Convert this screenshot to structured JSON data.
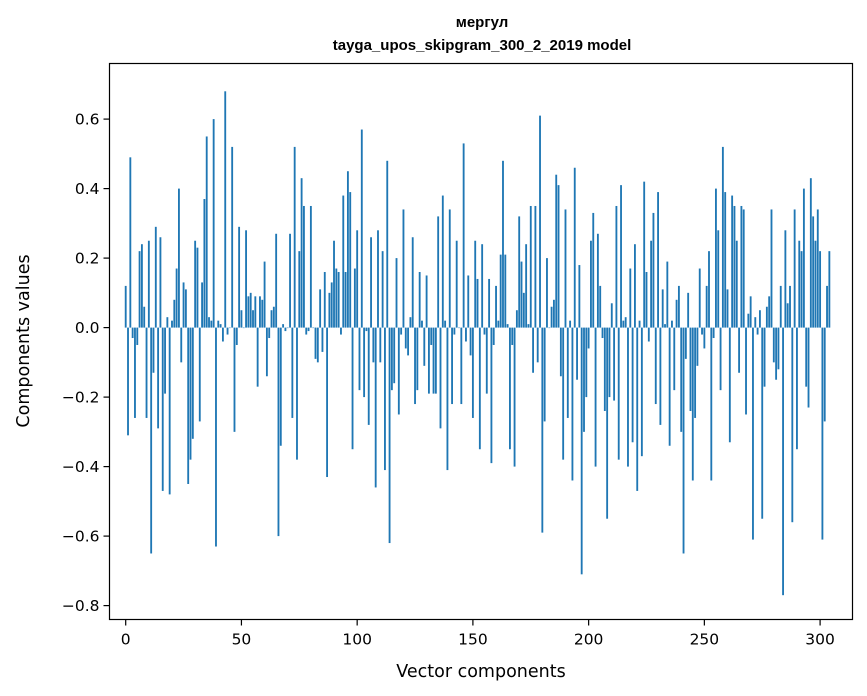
{
  "chart_data": {
    "type": "bar",
    "title": "мергул",
    "subtitle": "tayga_upos_skipgram_300_2_2019 model",
    "xlabel": "Vector components",
    "ylabel": "Components values",
    "xlim": [
      -7,
      314
    ],
    "ylim": [
      -0.84,
      0.76
    ],
    "xticks": [
      0,
      50,
      100,
      150,
      200,
      250,
      300
    ],
    "xtick_labels": [
      "0",
      "50",
      "100",
      "150",
      "200",
      "250",
      "300"
    ],
    "yticks": [
      -0.8,
      -0.6,
      -0.4,
      -0.2,
      0.0,
      0.2,
      0.4,
      0.6
    ],
    "ytick_labels": [
      "−0.8",
      "−0.6",
      "−0.4",
      "−0.2",
      "0.0",
      "0.2",
      "0.4",
      "0.6"
    ],
    "grid": false,
    "bar_color": "#1f77b4",
    "x_start": 0,
    "values": [
      0.12,
      -0.31,
      0.49,
      -0.03,
      -0.26,
      -0.05,
      0.22,
      0.24,
      0.06,
      -0.26,
      0.25,
      -0.65,
      -0.13,
      0.29,
      -0.29,
      0.26,
      -0.47,
      -0.19,
      0.03,
      -0.48,
      0.02,
      0.08,
      0.17,
      0.4,
      -0.1,
      0.13,
      0.11,
      -0.45,
      -0.38,
      -0.32,
      0.25,
      0.23,
      -0.27,
      0.13,
      0.37,
      0.55,
      0.03,
      0.02,
      0.6,
      -0.63,
      0.02,
      0.01,
      -0.04,
      0.68,
      -0.02,
      0.0,
      0.52,
      -0.3,
      -0.05,
      0.29,
      0.05,
      0.0,
      0.28,
      0.09,
      0.1,
      0.05,
      0.09,
      -0.17,
      0.09,
      0.08,
      0.19,
      -0.14,
      -0.03,
      0.05,
      0.06,
      0.27,
      -0.6,
      -0.34,
      0.01,
      -0.01,
      0.0,
      0.27,
      -0.26,
      0.52,
      -0.38,
      0.22,
      0.43,
      0.35,
      -0.02,
      -0.01,
      0.35,
      0.0,
      -0.09,
      -0.1,
      0.11,
      -0.07,
      0.16,
      -0.43,
      0.1,
      0.13,
      0.25,
      0.17,
      0.16,
      -0.02,
      0.38,
      0.16,
      0.45,
      0.39,
      -0.35,
      0.17,
      0.28,
      -0.18,
      0.57,
      -0.2,
      -0.01,
      -0.28,
      0.26,
      -0.1,
      -0.46,
      0.28,
      -0.1,
      0.22,
      -0.41,
      0.48,
      -0.62,
      -0.18,
      -0.16,
      0.2,
      -0.25,
      -0.02,
      0.34,
      -0.06,
      -0.08,
      0.03,
      0.26,
      -0.22,
      -0.18,
      0.16,
      0.02,
      -0.11,
      0.15,
      -0.19,
      -0.05,
      -0.19,
      -0.19,
      0.32,
      -0.29,
      0.38,
      0.02,
      -0.41,
      0.34,
      -0.22,
      -0.02,
      0.25,
      0.0,
      -0.22,
      0.53,
      -0.04,
      0.15,
      -0.08,
      -0.26,
      0.25,
      0.14,
      -0.35,
      0.24,
      -0.02,
      -0.19,
      0.14,
      -0.39,
      -0.05,
      0.12,
      0.02,
      0.21,
      0.48,
      0.21,
      0.01,
      -0.35,
      -0.05,
      -0.4,
      0.05,
      0.32,
      0.19,
      0.1,
      0.24,
      0.01,
      0.35,
      -0.13,
      0.35,
      -0.1,
      0.61,
      -0.59,
      -0.27,
      0.2,
      0.0,
      0.06,
      0.08,
      0.44,
      0.41,
      -0.14,
      -0.38,
      0.34,
      -0.26,
      0.02,
      -0.44,
      0.46,
      -0.15,
      0.18,
      -0.71,
      -0.3,
      -0.2,
      -0.06,
      0.25,
      0.33,
      -0.4,
      0.27,
      0.12,
      -0.03,
      -0.24,
      -0.55,
      -0.2,
      0.07,
      -0.21,
      0.35,
      -0.38,
      0.41,
      0.02,
      0.03,
      -0.4,
      0.17,
      -0.33,
      0.24,
      -0.47,
      0.02,
      -0.37,
      0.42,
      0.16,
      -0.04,
      0.25,
      0.33,
      -0.22,
      0.39,
      -0.28,
      0.11,
      0.01,
      0.19,
      -0.34,
      0.02,
      -0.18,
      0.08,
      0.12,
      -0.3,
      -0.65,
      -0.09,
      0.1,
      -0.24,
      -0.44,
      -0.26,
      -0.11,
      0.17,
      -0.02,
      -0.06,
      0.12,
      0.22,
      -0.44,
      -0.03,
      0.4,
      0.28,
      -0.18,
      0.52,
      0.39,
      0.11,
      -0.33,
      0.38,
      0.35,
      0.25,
      -0.13,
      0.35,
      0.34,
      -0.25,
      0.04,
      0.09,
      -0.61,
      0.03,
      -0.02,
      0.05,
      -0.55,
      -0.17,
      0.06,
      0.09,
      0.34,
      -0.1,
      -0.15,
      -0.12,
      0.12,
      -0.77,
      0.28,
      0.07,
      0.12,
      -0.56,
      0.34,
      -0.35,
      0.25,
      0.22,
      0.4,
      -0.17,
      -0.23,
      0.43,
      0.32,
      0.25,
      0.34,
      0.22,
      -0.61,
      -0.27,
      0.12,
      0.22
    ]
  }
}
